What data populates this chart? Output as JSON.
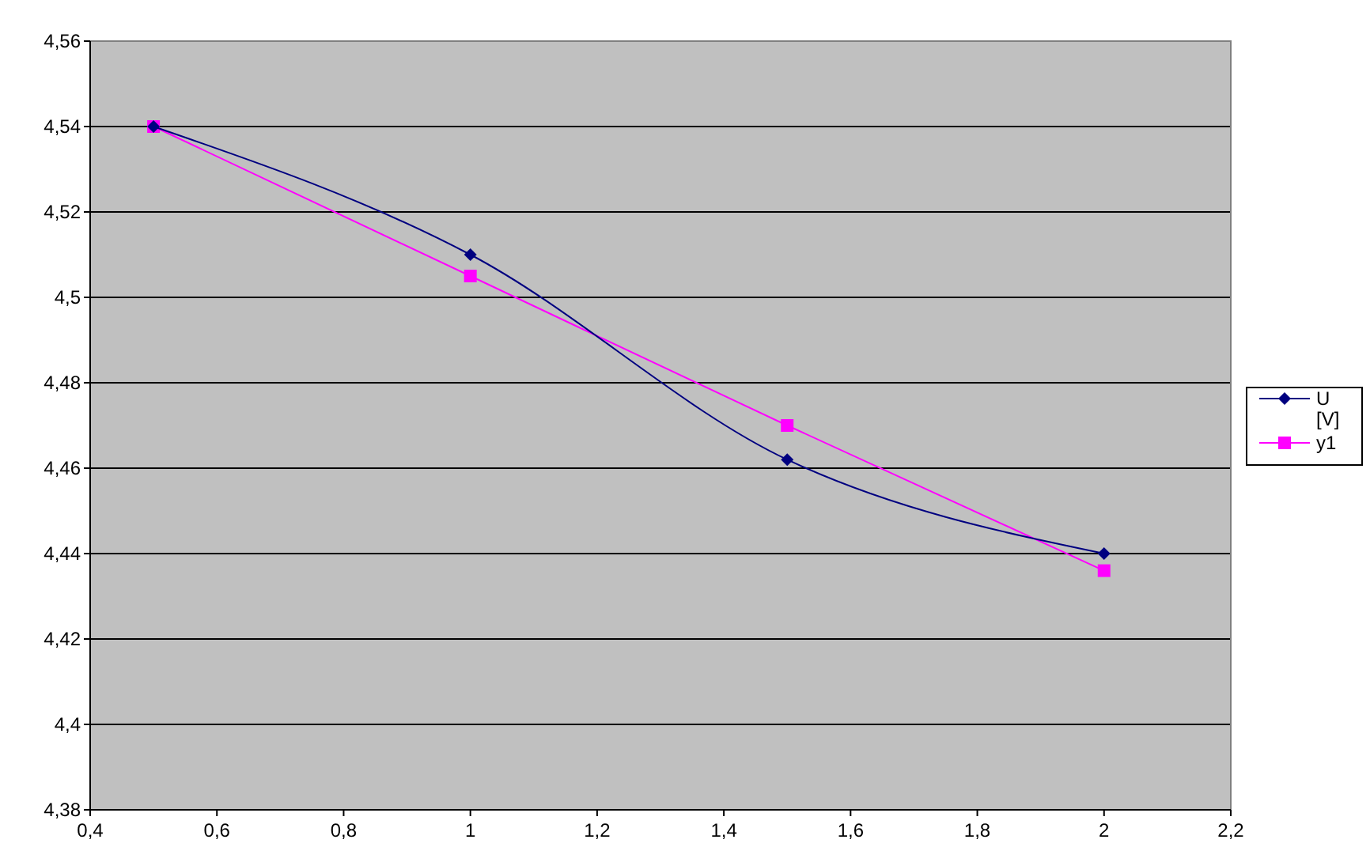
{
  "chart_data": {
    "type": "line",
    "x": [
      0.5,
      1,
      1.5,
      2
    ],
    "series": [
      {
        "name": "U [V]",
        "color": "#000080",
        "marker": "diamond",
        "values": [
          4.54,
          4.51,
          4.462,
          4.44
        ]
      },
      {
        "name": "y1",
        "color": "#ff00ff",
        "marker": "square",
        "values": [
          4.54,
          4.505,
          4.47,
          4.436
        ]
      }
    ],
    "xlim": [
      0.4,
      2.2
    ],
    "xticks": [
      {
        "value": 0.4,
        "label": "0,4"
      },
      {
        "value": 0.6,
        "label": "0,6"
      },
      {
        "value": 0.8,
        "label": "0,8"
      },
      {
        "value": 1,
        "label": "1"
      },
      {
        "value": 1.2,
        "label": "1,2"
      },
      {
        "value": 1.4,
        "label": "1,4"
      },
      {
        "value": 1.6,
        "label": "1,6"
      },
      {
        "value": 1.8,
        "label": "1,8"
      },
      {
        "value": 2,
        "label": "2"
      },
      {
        "value": 2.2,
        "label": "2,2"
      }
    ],
    "ylim": [
      4.38,
      4.56
    ],
    "yticks": [
      {
        "value": 4.38,
        "label": "4,38"
      },
      {
        "value": 4.4,
        "label": "4,4"
      },
      {
        "value": 4.42,
        "label": "4,42"
      },
      {
        "value": 4.44,
        "label": "4,44"
      },
      {
        "value": 4.46,
        "label": "4,46"
      },
      {
        "value": 4.48,
        "label": "4,48"
      },
      {
        "value": 4.5,
        "label": "4,5"
      },
      {
        "value": 4.52,
        "label": "4,52"
      },
      {
        "value": 4.54,
        "label": "4,54"
      },
      {
        "value": 4.56,
        "label": "4,56"
      }
    ],
    "grid": "y",
    "legend": "right"
  }
}
